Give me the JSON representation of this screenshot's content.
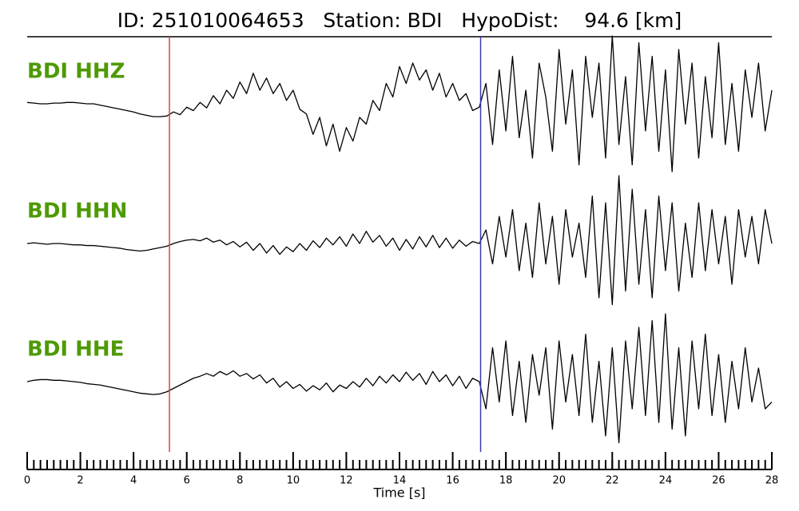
{
  "chart_data": {
    "type": "line",
    "title": "ID: 251010064653   Station: BDI   HypoDist:    94.6 [km]",
    "xlabel": "Time [s]",
    "xlim": [
      0,
      28
    ],
    "xticks": [
      0,
      2,
      4,
      6,
      8,
      10,
      12,
      14,
      16,
      18,
      20,
      22,
      24,
      26,
      28
    ],
    "xminorticks": [
      0,
      0.25,
      0.5,
      0.75,
      1,
      1.25,
      1.5,
      1.75,
      2,
      2.25,
      2.5,
      2.75,
      3,
      3.25,
      3.5,
      3.75,
      4,
      4.25,
      4.5,
      4.75,
      5,
      5.25,
      5.5,
      5.75,
      6,
      6.25,
      6.5,
      6.75,
      7,
      7.25,
      7.5,
      7.75,
      8,
      8.25,
      8.5,
      8.75,
      9,
      9.25,
      9.5,
      9.75,
      10,
      10.25,
      10.5,
      10.75,
      11,
      11.25,
      11.5,
      11.75,
      12,
      12.25,
      12.5,
      12.75,
      13,
      13.25,
      13.5,
      13.75,
      14,
      14.25,
      14.5,
      14.75,
      15,
      15.25,
      15.5,
      15.75,
      16,
      16.25,
      16.5,
      16.75,
      17,
      17.25,
      17.5,
      17.75,
      18,
      18.25,
      18.5,
      18.75,
      19,
      19.25,
      19.5,
      19.75,
      20,
      20.25,
      20.5,
      20.75,
      21,
      21.25,
      21.5,
      21.75,
      22,
      22.25,
      22.5,
      22.75,
      23,
      23.25,
      23.5,
      23.75,
      24,
      24.25,
      24.5,
      24.75,
      25,
      25.25,
      25.5,
      25.75,
      26,
      26.25,
      26.5,
      26.75,
      27,
      27.25,
      27.5,
      27.75,
      28
    ],
    "picks": [
      {
        "value": 5.35,
        "color": "#e8413a"
      },
      {
        "value": 17.05,
        "color": "#3a3ab8"
      }
    ],
    "x": [
      0,
      0.25,
      0.5,
      0.75,
      1,
      1.25,
      1.5,
      1.75,
      2,
      2.25,
      2.5,
      2.75,
      3,
      3.25,
      3.5,
      3.75,
      4,
      4.25,
      4.5,
      4.75,
      5,
      5.25,
      5.5,
      5.75,
      6,
      6.25,
      6.5,
      6.75,
      7,
      7.25,
      7.5,
      7.75,
      8,
      8.25,
      8.5,
      8.75,
      9,
      9.25,
      9.5,
      9.75,
      10,
      10.25,
      10.5,
      10.75,
      11,
      11.25,
      11.5,
      11.75,
      12,
      12.25,
      12.5,
      12.75,
      13,
      13.25,
      13.5,
      13.75,
      14,
      14.25,
      14.5,
      14.75,
      15,
      15.25,
      15.5,
      15.75,
      16,
      16.25,
      16.5,
      16.75,
      17,
      17.25,
      17.5,
      17.75,
      18,
      18.25,
      18.5,
      18.75,
      19,
      19.25,
      19.5,
      19.75,
      20,
      20.25,
      20.5,
      20.75,
      21,
      21.25,
      21.5,
      21.75,
      22,
      22.25,
      22.5,
      22.75,
      23,
      23.25,
      23.5,
      23.75,
      24,
      24.25,
      24.5,
      24.75,
      25,
      25.25,
      25.5,
      25.75,
      26,
      26.25,
      26.5,
      26.75,
      27,
      27.25,
      27.5,
      27.75,
      28
    ],
    "series": [
      {
        "name": "BDI HHZ",
        "name_color": "#4e9a06",
        "color": "#000000",
        "ylim": [
          -1,
          1
        ],
        "values": [
          0.02,
          0.01,
          0.0,
          0.0,
          0.01,
          0.01,
          0.02,
          0.02,
          0.01,
          0.0,
          0.0,
          -0.02,
          -0.04,
          -0.06,
          -0.08,
          -0.1,
          -0.12,
          -0.15,
          -0.17,
          -0.19,
          -0.19,
          -0.18,
          -0.12,
          -0.16,
          -0.05,
          -0.1,
          0.02,
          -0.06,
          0.12,
          0.0,
          0.2,
          0.08,
          0.32,
          0.15,
          0.45,
          0.2,
          0.38,
          0.15,
          0.3,
          0.05,
          0.2,
          -0.08,
          -0.15,
          -0.45,
          -0.2,
          -0.62,
          -0.3,
          -0.7,
          -0.35,
          -0.55,
          -0.2,
          -0.3,
          0.05,
          -0.1,
          0.3,
          0.1,
          0.55,
          0.3,
          0.6,
          0.35,
          0.5,
          0.2,
          0.45,
          0.1,
          0.3,
          0.05,
          0.15,
          -0.1,
          -0.05,
          0.3,
          -0.6,
          0.5,
          -0.4,
          0.7,
          -0.5,
          0.2,
          -0.8,
          0.6,
          0.1,
          -0.7,
          0.8,
          -0.3,
          0.5,
          -0.9,
          0.7,
          -0.2,
          0.6,
          -0.8,
          1.0,
          -0.6,
          0.4,
          -0.9,
          0.9,
          -0.4,
          0.7,
          -0.7,
          0.5,
          -1.0,
          0.8,
          -0.3,
          0.6,
          -0.8,
          0.4,
          -0.5,
          0.9,
          -0.6,
          0.3,
          -0.7,
          0.5,
          -0.2,
          0.6,
          -0.4,
          0.2
        ]
      },
      {
        "name": "BDI HHN",
        "name_color": "#4e9a06",
        "color": "#000000",
        "ylim": [
          -1,
          1
        ],
        "values": [
          0.0,
          0.01,
          0.0,
          -0.01,
          0.0,
          0.0,
          -0.01,
          -0.02,
          -0.02,
          -0.03,
          -0.03,
          -0.04,
          -0.05,
          -0.06,
          -0.07,
          -0.09,
          -0.1,
          -0.11,
          -0.1,
          -0.08,
          -0.06,
          -0.04,
          0.0,
          0.03,
          0.05,
          0.06,
          0.04,
          0.08,
          0.02,
          0.05,
          -0.02,
          0.03,
          -0.05,
          0.02,
          -0.1,
          0.0,
          -0.14,
          -0.03,
          -0.16,
          -0.05,
          -0.12,
          0.0,
          -0.1,
          0.04,
          -0.06,
          0.08,
          -0.02,
          0.1,
          -0.04,
          0.14,
          0.0,
          0.18,
          0.02,
          0.12,
          -0.04,
          0.08,
          -0.1,
          0.06,
          -0.08,
          0.1,
          -0.05,
          0.12,
          -0.06,
          0.08,
          -0.07,
          0.05,
          -0.04,
          0.03,
          0.0,
          0.2,
          -0.3,
          0.4,
          -0.2,
          0.5,
          -0.4,
          0.3,
          -0.5,
          0.6,
          -0.3,
          0.4,
          -0.6,
          0.5,
          -0.2,
          0.3,
          -0.5,
          0.7,
          -0.8,
          0.6,
          -0.9,
          1.0,
          -0.7,
          0.8,
          -0.6,
          0.5,
          -0.8,
          0.7,
          -0.4,
          0.6,
          -0.7,
          0.3,
          -0.5,
          0.6,
          -0.4,
          0.5,
          -0.3,
          0.4,
          -0.6,
          0.5,
          -0.2,
          0.4,
          -0.3,
          0.5,
          0.0
        ]
      },
      {
        "name": "BDI HHE",
        "name_color": "#4e9a06",
        "color": "#000000",
        "ylim": [
          -1,
          1
        ],
        "values": [
          0.0,
          0.02,
          0.03,
          0.03,
          0.02,
          0.02,
          0.01,
          0.0,
          -0.01,
          -0.03,
          -0.04,
          -0.05,
          -0.07,
          -0.09,
          -0.11,
          -0.13,
          -0.15,
          -0.17,
          -0.18,
          -0.19,
          -0.18,
          -0.15,
          -0.1,
          -0.05,
          0.0,
          0.05,
          0.08,
          0.12,
          0.08,
          0.15,
          0.1,
          0.16,
          0.08,
          0.12,
          0.04,
          0.1,
          -0.02,
          0.05,
          -0.08,
          0.0,
          -0.1,
          -0.04,
          -0.14,
          -0.06,
          -0.12,
          -0.02,
          -0.15,
          -0.05,
          -0.1,
          0.0,
          -0.08,
          0.05,
          -0.06,
          0.08,
          -0.02,
          0.1,
          0.0,
          0.14,
          0.02,
          0.12,
          -0.04,
          0.15,
          0.0,
          0.1,
          -0.06,
          0.08,
          -0.1,
          0.05,
          0.0,
          -0.4,
          0.5,
          -0.3,
          0.6,
          -0.5,
          0.3,
          -0.6,
          0.4,
          -0.2,
          0.5,
          -0.7,
          0.6,
          -0.3,
          0.4,
          -0.5,
          0.7,
          -0.6,
          0.3,
          -0.8,
          0.5,
          -0.9,
          0.6,
          -0.4,
          0.8,
          -0.5,
          0.9,
          -0.6,
          1.0,
          -0.7,
          0.5,
          -0.8,
          0.6,
          -0.4,
          0.7,
          -0.5,
          0.4,
          -0.6,
          0.3,
          -0.4,
          0.5,
          -0.3,
          0.2,
          -0.4,
          -0.3
        ]
      }
    ]
  }
}
